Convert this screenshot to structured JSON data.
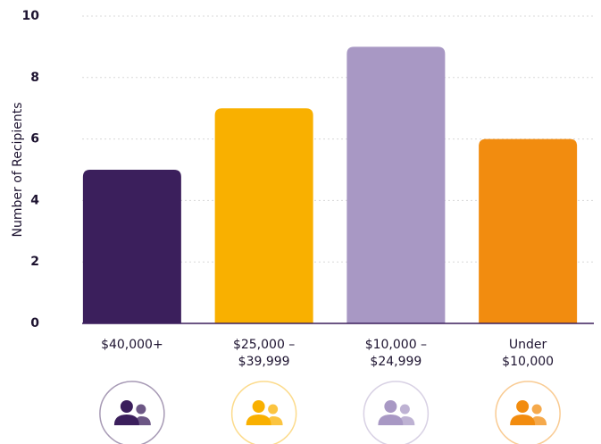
{
  "chart_data": {
    "type": "bar",
    "y_label": "Number of Recipients",
    "categories": [
      "$40,000+",
      "$25,000 –\n$39,999",
      "$10,000 –\n$24,999",
      "Under\n$10,000"
    ],
    "values": [
      5,
      7,
      9,
      6
    ],
    "colors": [
      "#3b1f5c",
      "#f9b000",
      "#a898c4",
      "#f28c0f"
    ],
    "ylim": [
      0,
      10
    ],
    "yticks": [
      0,
      2,
      4,
      6,
      8,
      10
    ],
    "grid": true
  }
}
